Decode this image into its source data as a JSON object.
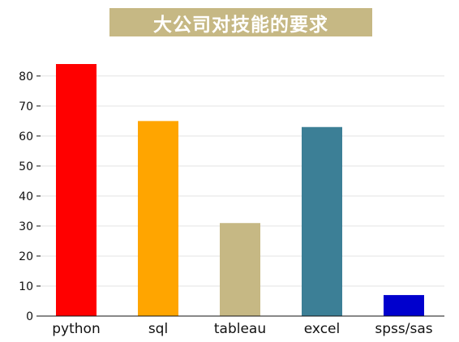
{
  "chart_data": {
    "type": "bar",
    "title": "大公司对技能的要求",
    "categories": [
      "python",
      "sql",
      "tableau",
      "excel",
      "spss/sas"
    ],
    "values": [
      84,
      65,
      31,
      63,
      7
    ],
    "colors": [
      "#ff0000",
      "#ffa500",
      "#c6b884",
      "#3c7f96",
      "#0000cd"
    ],
    "ylim": [
      0,
      84
    ],
    "yticks": [
      0,
      10,
      20,
      30,
      40,
      50,
      60,
      70,
      80
    ],
    "grid": true,
    "title_background": "#c6b884",
    "xlabel": "",
    "ylabel": ""
  }
}
